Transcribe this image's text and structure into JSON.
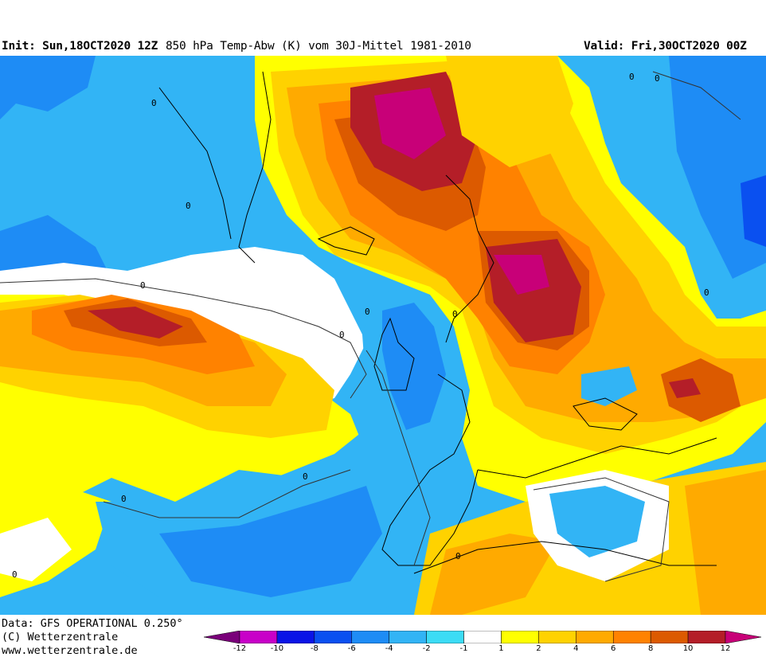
{
  "header": {
    "init": "Init: Sun,18OCT2020 12Z",
    "field": "850 hPa Temp-Abw (K) vom 30J-Mittel 1981-2010",
    "valid": "Valid: Fri,30OCT2020 00Z"
  },
  "footer": {
    "data_source": "Data: GFS OPERATIONAL 0.250°",
    "copyright": "(C) Wetterzentrale",
    "website": "www.wetterzentrale.de"
  },
  "legend": {
    "labels": [
      "-12",
      "-10",
      "-8",
      "-6",
      "-4",
      "-2",
      "-1",
      "1",
      "2",
      "4",
      "6",
      "8",
      "10",
      "12"
    ],
    "colors": [
      "#7a007a",
      "#c800c8",
      "#0a14e6",
      "#0a50f0",
      "#1e8cf5",
      "#32b4f5",
      "#3cdcf5",
      "#ffffff",
      "#ffff00",
      "#ffd200",
      "#ffaa00",
      "#ff8200",
      "#dc5a00",
      "#b41e28",
      "#c80078"
    ]
  },
  "map": {
    "contour_labels": [
      "0",
      "0",
      "0",
      "0",
      "0",
      "0",
      "0",
      "0",
      "0",
      "0",
      "0",
      "0",
      "0"
    ],
    "colors": {
      "land_lines": "#000000",
      "zero_contour": "#333333"
    }
  }
}
